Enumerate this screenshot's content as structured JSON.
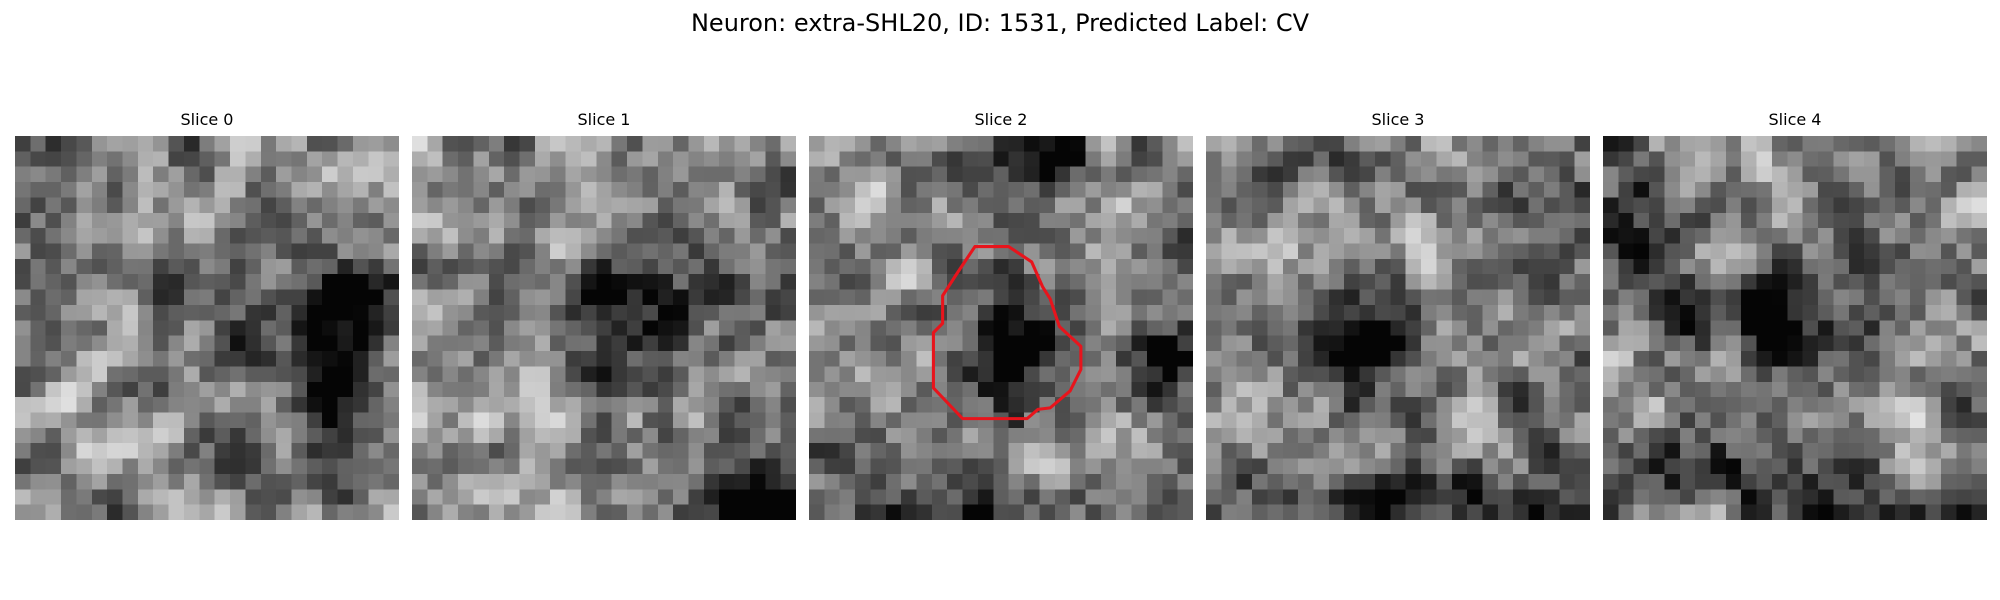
{
  "figure": {
    "title": "Neuron: extra-SHL20, ID: 1531, Predicted Label: CV"
  },
  "panels": [
    {
      "title": "Slice 0",
      "has_contour": false
    },
    {
      "title": "Slice 1",
      "has_contour": false
    },
    {
      "title": "Slice 2",
      "has_contour": true
    },
    {
      "title": "Slice 3",
      "has_contour": false
    },
    {
      "title": "Slice 4",
      "has_contour": false
    }
  ],
  "colors": {
    "contour": "#e8141c",
    "background": "#ffffff"
  },
  "image": {
    "grid_size": 25,
    "colormap": "gray"
  }
}
